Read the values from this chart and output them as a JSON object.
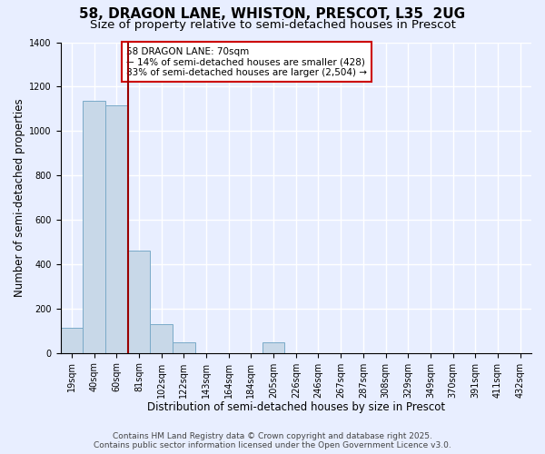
{
  "title_line1": "58, DRAGON LANE, WHISTON, PRESCOT, L35  2UG",
  "title_line2": "Size of property relative to semi-detached houses in Prescot",
  "xlabel": "Distribution of semi-detached houses by size in Prescot",
  "ylabel": "Number of semi-detached properties",
  "footer_line1": "Contains HM Land Registry data © Crown copyright and database right 2025.",
  "footer_line2": "Contains public sector information licensed under the Open Government Licence v3.0.",
  "annotation_line1": "58 DRAGON LANE: 70sqm",
  "annotation_line2": "← 14% of semi-detached houses are smaller (428)",
  "annotation_line3": "83% of semi-detached houses are larger (2,504) →",
  "bin_labels": [
    "19sqm",
    "40sqm",
    "60sqm",
    "81sqm",
    "102sqm",
    "122sqm",
    "143sqm",
    "164sqm",
    "184sqm",
    "205sqm",
    "226sqm",
    "246sqm",
    "267sqm",
    "287sqm",
    "308sqm",
    "329sqm",
    "349sqm",
    "370sqm",
    "391sqm",
    "411sqm",
    "432sqm"
  ],
  "bar_heights": [
    113,
    1135,
    1115,
    460,
    130,
    50,
    0,
    0,
    0,
    50,
    0,
    0,
    0,
    0,
    0,
    0,
    0,
    0,
    0,
    0
  ],
  "vline_bin": 2.5,
  "bar_color": "#c8d8e8",
  "bar_edge_color": "#7aaac8",
  "vline_color": "#990000",
  "ylim": [
    0,
    1400
  ],
  "yticks": [
    0,
    200,
    400,
    600,
    800,
    1000,
    1200,
    1400
  ],
  "annotation_box_facecolor": "#ffffff",
  "annotation_box_edgecolor": "#cc0000",
  "background_color": "#e8eeff",
  "grid_color": "#ffffff",
  "title_fontsize": 11,
  "subtitle_fontsize": 9.5,
  "axis_label_fontsize": 8.5,
  "tick_fontsize": 7,
  "annotation_fontsize": 7.5,
  "footer_fontsize": 6.5
}
